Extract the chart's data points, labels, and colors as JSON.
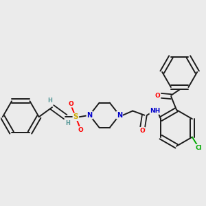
{
  "bg_color": "#ebebeb",
  "bond_color": "#1a1a1a",
  "atom_colors": {
    "O": "#ff0000",
    "N": "#0000cc",
    "S": "#ccaa00",
    "Cl": "#00aa00",
    "H": "#5a9a9a",
    "C": "#1a1a1a"
  }
}
